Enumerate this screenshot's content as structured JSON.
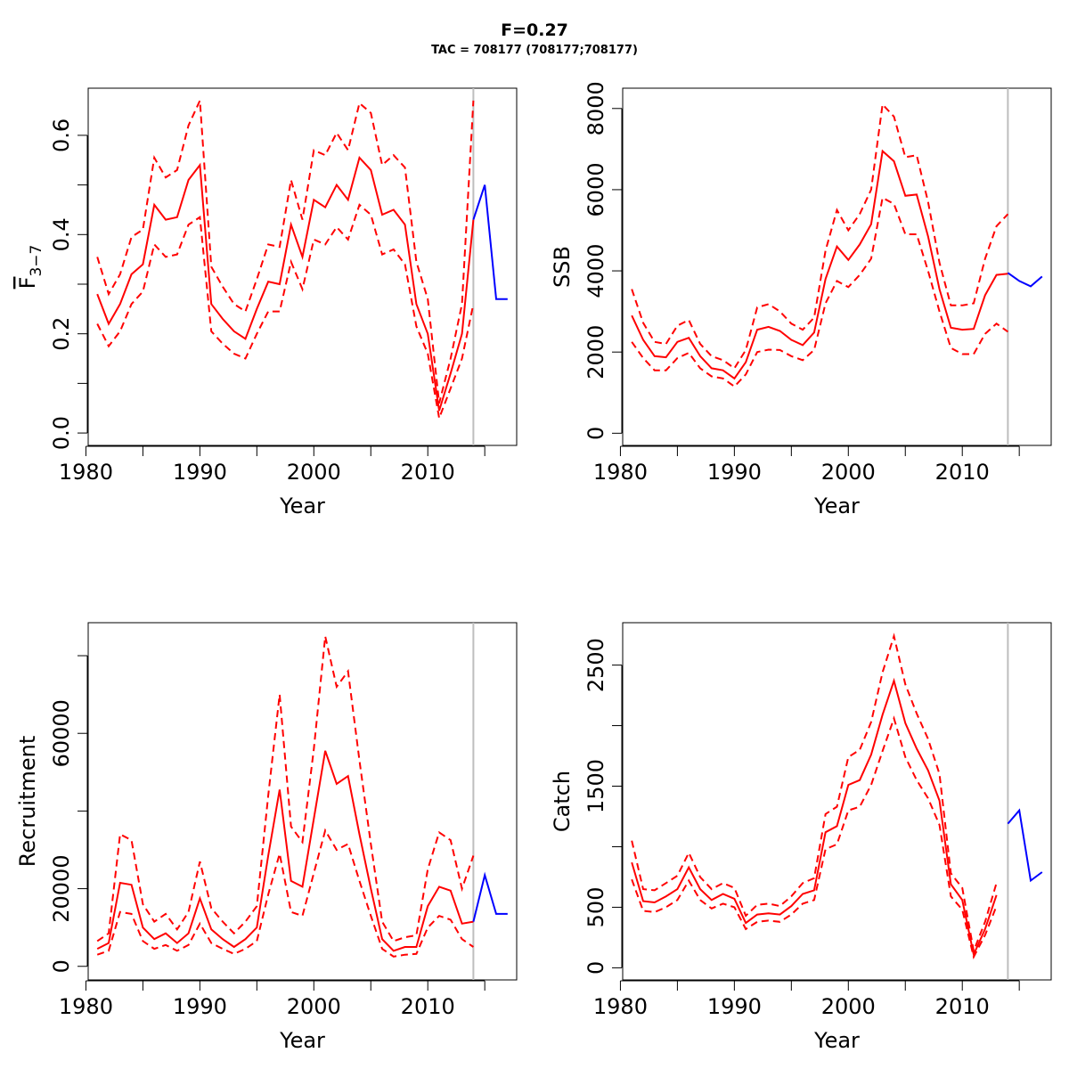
{
  "title": "F=0.27",
  "subtitle": "TAC = 708177 (708177;708177)",
  "colors": {
    "historic": "#ff0000",
    "projection": "#0000ff",
    "assessment_year_line": "#bebebe"
  },
  "chart_data": [
    {
      "id": "fbar",
      "type": "line",
      "xlabel": "Year",
      "ylabel_main": "F",
      "ylabel_sub": "3−7",
      "xlim": [
        1980.2,
        2017.8
      ],
      "ylim": [
        -0.025,
        0.695
      ],
      "xticks": [
        1980,
        1985,
        1990,
        1995,
        2000,
        2005,
        2010,
        2015
      ],
      "xtick_labels": [
        "1980",
        "",
        "1990",
        "",
        "2000",
        "",
        "2010",
        ""
      ],
      "yticks": [
        0,
        0.1,
        0.2,
        0.3,
        0.4,
        0.5,
        0.6
      ],
      "ytick_labels": [
        "0.0",
        "",
        "0.2",
        "",
        "0.4",
        "",
        "0.6"
      ],
      "vline": 2014,
      "x": [
        1981,
        1982,
        1983,
        1984,
        1985,
        1986,
        1987,
        1988,
        1989,
        1990,
        1991,
        1992,
        1993,
        1994,
        1995,
        1996,
        1997,
        1998,
        1999,
        2000,
        2001,
        2002,
        2003,
        2004,
        2005,
        2006,
        2007,
        2008,
        2009,
        2010,
        2011,
        2012,
        2013,
        2014
      ],
      "mid": [
        0.28,
        0.22,
        0.26,
        0.32,
        0.34,
        0.46,
        0.43,
        0.435,
        0.51,
        0.54,
        0.26,
        0.23,
        0.205,
        0.19,
        0.25,
        0.305,
        0.3,
        0.42,
        0.355,
        0.47,
        0.455,
        0.5,
        0.47,
        0.555,
        0.53,
        0.44,
        0.45,
        0.42,
        0.26,
        0.2,
        0.045,
        0.12,
        0.2,
        0.43
      ],
      "upper": [
        0.355,
        0.28,
        0.32,
        0.395,
        0.41,
        0.555,
        0.515,
        0.53,
        0.62,
        0.67,
        0.335,
        0.295,
        0.26,
        0.245,
        0.31,
        0.38,
        0.375,
        0.51,
        0.43,
        0.57,
        0.56,
        0.605,
        0.57,
        0.665,
        0.645,
        0.54,
        0.56,
        0.535,
        0.345,
        0.27,
        0.06,
        0.15,
        0.26,
        0.67
      ],
      "lower": [
        0.22,
        0.175,
        0.205,
        0.26,
        0.285,
        0.38,
        0.355,
        0.36,
        0.42,
        0.435,
        0.205,
        0.18,
        0.16,
        0.15,
        0.2,
        0.245,
        0.245,
        0.345,
        0.29,
        0.39,
        0.38,
        0.415,
        0.39,
        0.46,
        0.44,
        0.36,
        0.37,
        0.34,
        0.215,
        0.16,
        0.03,
        0.09,
        0.15,
        0.26
      ],
      "projection": {
        "x": [
          2014,
          2015,
          2016,
          2017
        ],
        "y": [
          0.43,
          0.5,
          0.27,
          0.27
        ]
      }
    },
    {
      "id": "ssb",
      "type": "line",
      "xlabel": "Year",
      "ylabel_main": "SSB",
      "xlim": [
        1980.2,
        2017.8
      ],
      "ylim": [
        -300,
        8500
      ],
      "xticks": [
        1980,
        1985,
        1990,
        1995,
        2000,
        2005,
        2010,
        2015
      ],
      "xtick_labels": [
        "1980",
        "",
        "1990",
        "",
        "2000",
        "",
        "2010",
        ""
      ],
      "yticks": [
        0,
        2000,
        4000,
        6000,
        8000
      ],
      "ytick_labels": [
        "0",
        "2000",
        "4000",
        "6000",
        "8000"
      ],
      "vline": 2014,
      "x": [
        1981,
        1982,
        1983,
        1984,
        1985,
        1986,
        1987,
        1988,
        1989,
        1990,
        1991,
        1992,
        1993,
        1994,
        1995,
        1996,
        1997,
        1998,
        1999,
        2000,
        2001,
        2002,
        2003,
        2004,
        2005,
        2006,
        2007,
        2008,
        2009,
        2010,
        2011,
        2012,
        2013,
        2014
      ],
      "mid": [
        2900,
        2300,
        1900,
        1870,
        2250,
        2350,
        1900,
        1600,
        1550,
        1350,
        1750,
        2550,
        2620,
        2520,
        2300,
        2170,
        2480,
        3800,
        4600,
        4270,
        4650,
        5150,
        6950,
        6700,
        5850,
        5880,
        4850,
        3550,
        2600,
        2550,
        2570,
        3400,
        3900,
        3930
      ],
      "upper": [
        3550,
        2720,
        2250,
        2200,
        2650,
        2790,
        2200,
        1900,
        1800,
        1600,
        2050,
        3100,
        3180,
        3000,
        2700,
        2550,
        2850,
        4500,
        5500,
        5000,
        5400,
        6000,
        8100,
        7800,
        6800,
        6850,
        5700,
        4200,
        3150,
        3150,
        3200,
        4300,
        5100,
        5400
      ],
      "lower": [
        2250,
        1850,
        1550,
        1550,
        1850,
        1980,
        1600,
        1400,
        1350,
        1150,
        1450,
        2000,
        2060,
        2050,
        1900,
        1800,
        2050,
        3200,
        3750,
        3600,
        3900,
        4300,
        5800,
        5650,
        4900,
        4900,
        4000,
        3000,
        2100,
        1950,
        1950,
        2450,
        2700,
        2500
      ],
      "projection": {
        "x": [
          2014,
          2015,
          2016,
          2017
        ],
        "y": [
          3950,
          3750,
          3620,
          3860
        ]
      }
    },
    {
      "id": "recruitment",
      "type": "line",
      "xlabel": "Year",
      "ylabel_main": "Recruitment",
      "xlim": [
        1980.2,
        2017.8
      ],
      "ylim": [
        -3500,
        88500
      ],
      "xticks": [
        1980,
        1985,
        1990,
        1995,
        2000,
        2005,
        2010,
        2015
      ],
      "xtick_labels": [
        "1980",
        "",
        "1990",
        "",
        "2000",
        "",
        "2010",
        ""
      ],
      "yticks": [
        0,
        20000,
        40000,
        60000,
        80000
      ],
      "ytick_labels": [
        "0",
        "20000",
        "",
        "60000",
        ""
      ],
      "vline": 2014,
      "x": [
        1981,
        1982,
        1983,
        1984,
        1985,
        1986,
        1987,
        1988,
        1989,
        1990,
        1991,
        1992,
        1993,
        1994,
        1995,
        1996,
        1997,
        1998,
        1999,
        2000,
        2001,
        2002,
        2003,
        2004,
        2005,
        2006,
        2007,
        2008,
        2009,
        2010,
        2011,
        2012,
        2013,
        2014
      ],
      "mid": [
        4500,
        6000,
        21500,
        21000,
        10000,
        7000,
        8500,
        6000,
        8500,
        17500,
        9500,
        7000,
        5000,
        7000,
        10000,
        28500,
        45500,
        22000,
        20500,
        38000,
        55500,
        47000,
        49000,
        34000,
        20000,
        7000,
        4000,
        5000,
        5000,
        15500,
        20500,
        19500,
        11000,
        11500
      ],
      "upper": [
        6500,
        8500,
        34000,
        32500,
        16000,
        11500,
        13500,
        9500,
        14000,
        27000,
        15000,
        11500,
        8500,
        11500,
        15500,
        44000,
        70000,
        36000,
        32000,
        56000,
        85000,
        72000,
        76000,
        53000,
        31500,
        11500,
        6500,
        7500,
        8000,
        25000,
        34500,
        32500,
        20000,
        28500
      ],
      "lower": [
        3000,
        4000,
        14000,
        13500,
        6500,
        4500,
        5500,
        4000,
        5500,
        11000,
        6000,
        4500,
        3200,
        4500,
        6500,
        18500,
        29000,
        14000,
        13000,
        24000,
        35000,
        30000,
        31500,
        22000,
        13000,
        4500,
        2500,
        3000,
        3200,
        10000,
        13000,
        12000,
        7000,
        5000
      ],
      "projection": {
        "x": [
          2014,
          2015,
          2016,
          2017
        ],
        "y": [
          11500,
          23500,
          13500,
          13500
        ]
      }
    },
    {
      "id": "catch",
      "type": "line",
      "xlabel": "Year",
      "ylabel_main": "Catch",
      "xlim": [
        1980.2,
        2017.8
      ],
      "ylim": [
        -100,
        2850
      ],
      "xticks": [
        1980,
        1985,
        1990,
        1995,
        2000,
        2005,
        2010,
        2015
      ],
      "xtick_labels": [
        "1980",
        "",
        "1990",
        "",
        "2000",
        "",
        "2010",
        ""
      ],
      "yticks": [
        0,
        500,
        1000,
        1500,
        2000,
        2500
      ],
      "ytick_labels": [
        "0",
        "500",
        "",
        "1500",
        "",
        "2500"
      ],
      "vline": 2014,
      "x": [
        1981,
        1982,
        1983,
        1984,
        1985,
        1986,
        1987,
        1988,
        1989,
        1990,
        1991,
        1992,
        1993,
        1994,
        1995,
        1996,
        1997,
        1998,
        1999,
        2000,
        2001,
        2002,
        2003,
        2004,
        2005,
        2006,
        2007,
        2008,
        2009,
        2010,
        2011,
        2012,
        2013
      ],
      "mid": [
        870,
        550,
        540,
        590,
        650,
        830,
        650,
        560,
        610,
        570,
        370,
        440,
        450,
        440,
        510,
        610,
        640,
        1120,
        1170,
        1510,
        1550,
        1760,
        2090,
        2370,
        2020,
        1810,
        1630,
        1380,
        690,
        560,
        110,
        320,
        600
      ],
      "upper": [
        1050,
        650,
        640,
        700,
        760,
        950,
        750,
        650,
        700,
        660,
        430,
        520,
        530,
        510,
        590,
        700,
        740,
        1270,
        1330,
        1740,
        1800,
        2030,
        2440,
        2740,
        2340,
        2100,
        1890,
        1600,
        780,
        660,
        140,
        380,
        700
      ],
      "lower": [
        730,
        470,
        460,
        500,
        560,
        720,
        560,
        490,
        530,
        500,
        320,
        380,
        390,
        380,
        440,
        530,
        560,
        980,
        1020,
        1300,
        1330,
        1510,
        1790,
        2060,
        1740,
        1550,
        1400,
        1180,
        590,
        480,
        90,
        270,
        510
      ],
      "projection": {
        "x": [
          2014,
          2015,
          2016,
          2017
        ],
        "y": [
          1190,
          1300,
          720,
          790
        ]
      }
    }
  ]
}
